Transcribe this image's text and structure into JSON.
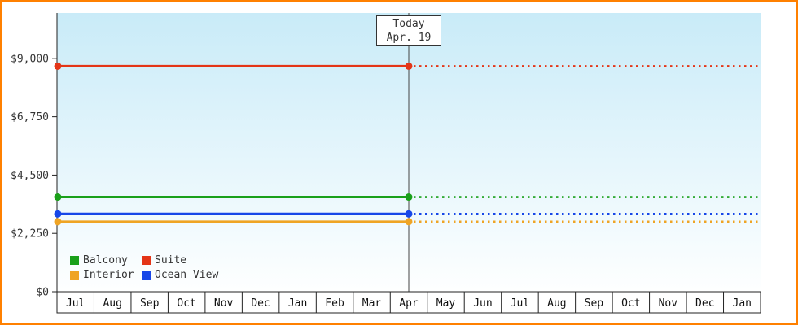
{
  "chart_data": {
    "type": "line",
    "title": "",
    "description": "Cruise cabin price history by category; flat prices solid before today, dotted forecast after today",
    "x_tick_labels": [
      "Jul",
      "Aug",
      "Sep",
      "Oct",
      "Nov",
      "Dec",
      "Jan",
      "Feb",
      "Mar",
      "Apr",
      "May",
      "Jun",
      "Jul",
      "Aug",
      "Sep",
      "Oct",
      "Nov",
      "Dec",
      "Jan"
    ],
    "y_ticks": [
      {
        "value": 0,
        "label": "$0"
      },
      {
        "value": 2250,
        "label": "$2,250"
      },
      {
        "value": 4500,
        "label": "$4,500"
      },
      {
        "value": 6750,
        "label": "$6,750"
      },
      {
        "value": 9000,
        "label": "$9,000"
      }
    ],
    "ylim": [
      0,
      10750
    ],
    "grid": false,
    "today_marker": {
      "line1": "Today",
      "line2": "Apr. 19",
      "month_index": 9,
      "month_fraction": 0.5
    },
    "series": [
      {
        "name": "Suite",
        "color": "#e43517",
        "value": 8700
      },
      {
        "name": "Balcony",
        "color": "#1aa01a",
        "value": 3650
      },
      {
        "name": "Ocean View",
        "color": "#1747e8",
        "value": 3000
      },
      {
        "name": "Interior",
        "color": "#efa424",
        "value": 2700
      }
    ],
    "line_style_note": "solid from left edge to today line, dotted after today line; round markers at start and at today line",
    "legend": {
      "position": "bottom-left",
      "items": [
        {
          "label": "Balcony",
          "color": "#1aa01a"
        },
        {
          "label": "Suite",
          "color": "#e43517"
        },
        {
          "label": "Interior",
          "color": "#efa424"
        },
        {
          "label": "Ocean View",
          "color": "#1747e8"
        }
      ]
    }
  },
  "colors": {
    "frame_border": "#ff8000",
    "plot_gradient_top": "#c9ebf8",
    "plot_gradient_bottom": "#feffff",
    "axis": "#222222",
    "today_line": "#444444",
    "text": "#333333"
  }
}
